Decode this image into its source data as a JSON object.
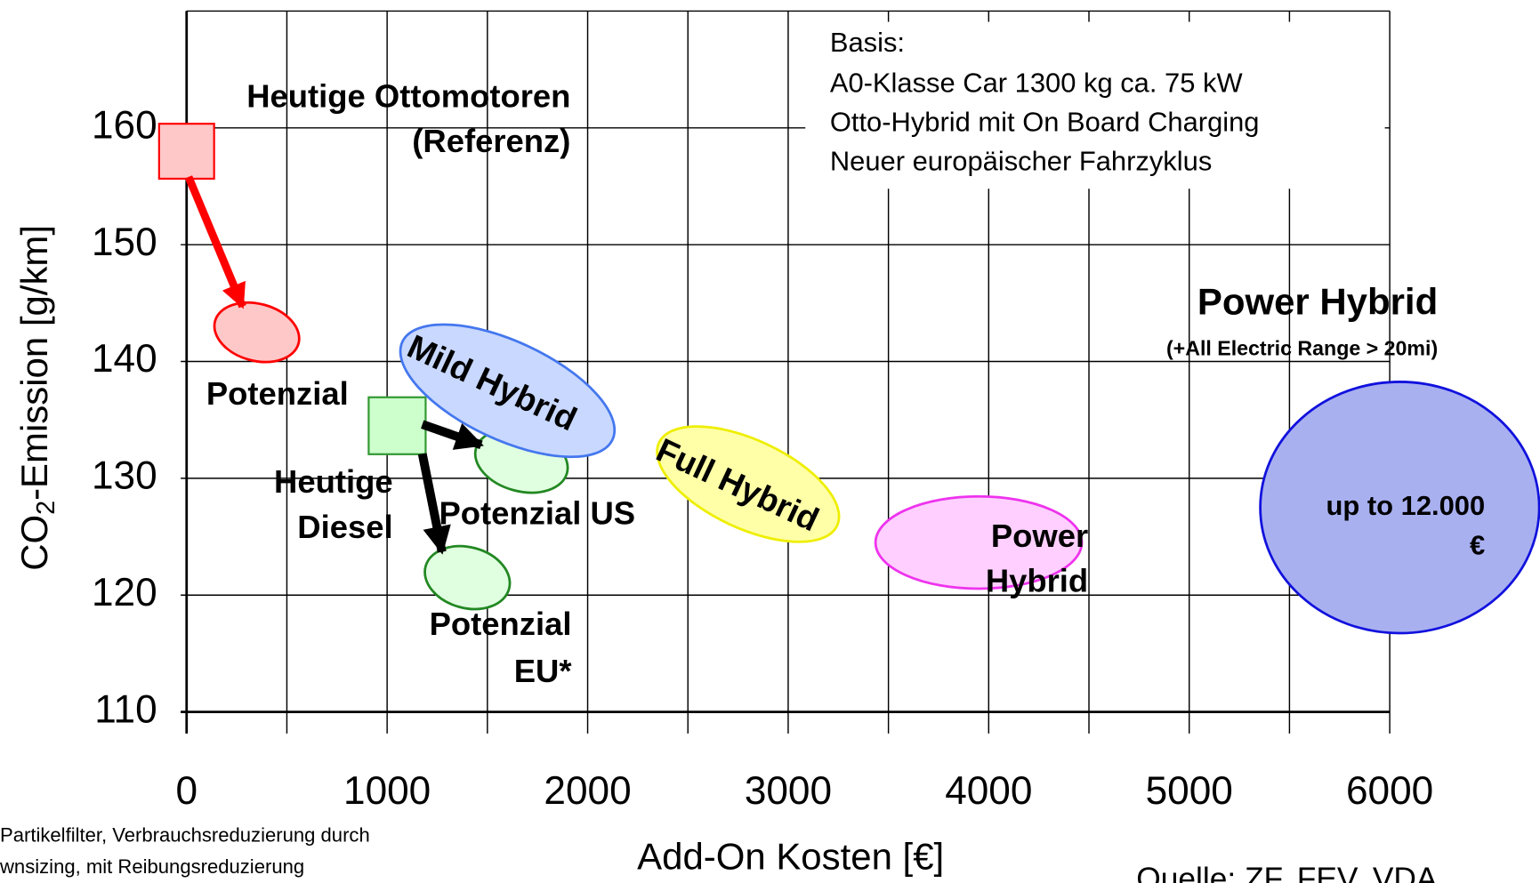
{
  "chart_data": {
    "type": "scatter",
    "x_label": "Add-On Kosten  [€]",
    "y_label": [
      "CO",
      "2",
      "-Emission [g/km]"
    ],
    "xlim": [
      0,
      6000
    ],
    "ylim": [
      110,
      170
    ],
    "xticks": [
      0,
      1000,
      2000,
      3000,
      4000,
      5000,
      6000
    ],
    "x_minor_ticks": [
      500,
      1500,
      2500,
      3500,
      4500,
      5500
    ],
    "yticks": [
      110,
      120,
      130,
      140,
      150,
      160
    ],
    "grid": true,
    "points": [
      {
        "label": [
          "Heutige Ottomotoren",
          "(Referenz)"
        ],
        "shape": "square",
        "fill": "#ffc8c8",
        "edge": "#ff0000",
        "x": 0,
        "y": 158
      },
      {
        "label": [
          "Potenzial"
        ],
        "shape": "ellipse",
        "fill": "#ffc8c8",
        "edge": "#ff0000",
        "x": 350,
        "y": 142.5
      },
      {
        "label": [
          "Heutige",
          "Diesel"
        ],
        "shape": "square",
        "fill": "#ccffcc",
        "edge": "#339933",
        "x": 1050,
        "y": 134.5
      },
      {
        "label": [
          "Potenzial US"
        ],
        "shape": "ellipse",
        "fill": "#e0ffe0",
        "edge": "#228822",
        "x": 1670,
        "y": 131.5
      },
      {
        "label": [
          "Potenzial",
          "EU*"
        ],
        "shape": "ellipse",
        "fill": "#e0ffe0",
        "edge": "#228822",
        "x": 1400,
        "y": 121.5
      },
      {
        "label": [
          "Mild Hybrid"
        ],
        "shape": "ellipse",
        "fill": "#c8d8ff",
        "edge": "#4477ee",
        "x": 1600,
        "y": 137.5
      },
      {
        "label": [
          "Full Hybrid"
        ],
        "shape": "ellipse",
        "fill": "#ffffa8",
        "edge": "#eeee00",
        "x": 2800,
        "y": 129.5
      },
      {
        "label": [
          "Power",
          "Hybrid"
        ],
        "shape": "ellipse",
        "fill": "#ffd0ff",
        "edge": "#ee33ee",
        "x": 3950,
        "y": 124.5
      },
      {
        "label": [
          "up to 12.000",
          "€"
        ],
        "shape": "ellipse",
        "fill": "#a8b0f0",
        "edge": "#1111dd",
        "x": 6050,
        "y": 127.5
      }
    ],
    "basis": [
      "Basis:",
      "A0-Klasse Car 1300 kg ca. 75 kW",
      "Otto-Hybrid mit On Board Charging",
      "Neuer europäischer Fahrzyklus"
    ],
    "power_hybrid_title": "Power Hybrid",
    "power_hybrid_note": "(+All Electric Range > 20mi)",
    "footnote": [
      "Partikelfilter, Verbrauchsreduzierung durch",
      "wnsizing, mit Reibungsreduzierung"
    ],
    "source": "Quelle: ZF, FEV, VDA"
  }
}
